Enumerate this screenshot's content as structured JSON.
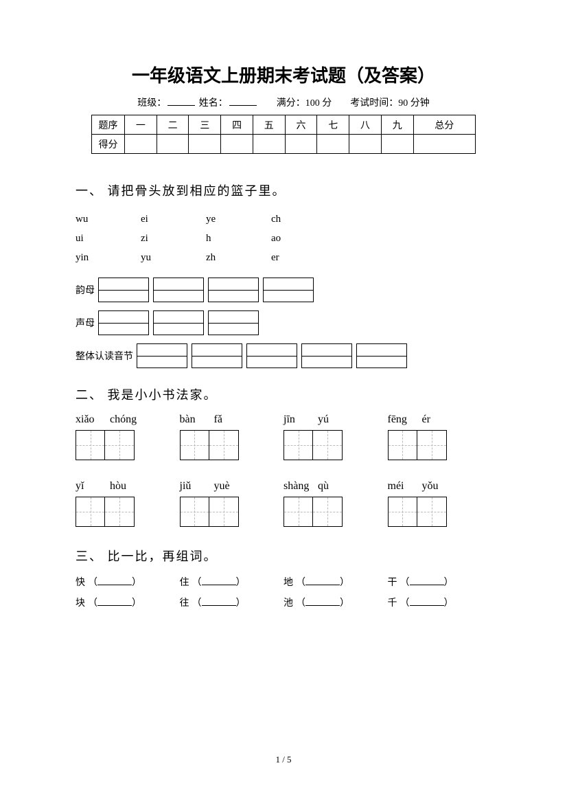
{
  "title": "一年级语文上册期末考试题（及答案）",
  "info": {
    "class_label": "班级：",
    "name_label": "姓名：",
    "full_score": "满分：100 分",
    "time": "考试时间：90 分钟"
  },
  "score_table": {
    "row1": [
      "题序",
      "一",
      "二",
      "三",
      "四",
      "五",
      "六",
      "七",
      "八",
      "九",
      "总分"
    ],
    "row2_label": "得分"
  },
  "section1": {
    "heading": "一、 请把骨头放到相应的篮子里。",
    "pinyin_grid": [
      [
        "wu",
        "ei",
        "ye",
        "ch"
      ],
      [
        "ui",
        "zi",
        "h",
        "ao"
      ],
      [
        "yin",
        "yu",
        "zh",
        "er"
      ]
    ],
    "baskets": [
      {
        "label": "韵母",
        "count": 4
      },
      {
        "label": "声母",
        "count": 3
      },
      {
        "label": "整体认读音节",
        "count": 5
      }
    ]
  },
  "section2": {
    "heading": "二、 我是小小书法家。",
    "rows": [
      [
        [
          "xiǎo",
          "chóng"
        ],
        [
          "bàn",
          "fǎ"
        ],
        [
          "jīn",
          "yú"
        ],
        [
          "fēng",
          "ér"
        ]
      ],
      [
        [
          "yǐ",
          "hòu"
        ],
        [
          "jiǔ",
          "yuè"
        ],
        [
          "shàng",
          "qù"
        ],
        [
          "méi",
          "yǒu"
        ]
      ]
    ]
  },
  "section3": {
    "heading": "三、 比一比，再组词。",
    "pairs": [
      [
        "快",
        "住",
        "地",
        "干"
      ],
      [
        "块",
        "往",
        "池",
        "千"
      ]
    ],
    "paren_open": "（",
    "paren_close": "）"
  },
  "page_num": "1 / 5"
}
